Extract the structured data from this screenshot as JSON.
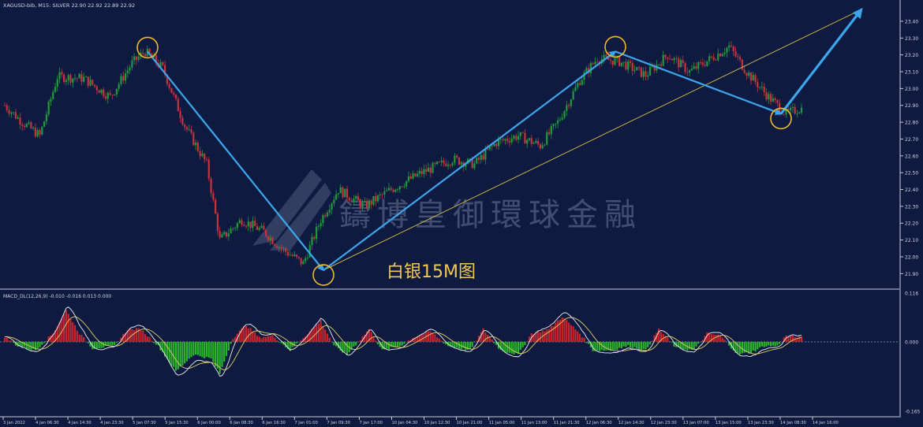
{
  "header": {
    "symbol_info": "XAGUSD-bib, M15:  SILVER  22.90 22.92 22.89 22.92",
    "indicator_info": "MACD_DL(12,26,9) -0.010 -0.016 0.013 0.000"
  },
  "annotation": {
    "caption": "白银15M图"
  },
  "watermark": {
    "text": "鑄博皇御環球金融"
  },
  "colors": {
    "background": "#0f1a40",
    "grid": "#2b3a6e",
    "candle_up": "#1f9a3a",
    "candle_down": "#c8323c",
    "trend_arrow": "#3ba6ec",
    "trendline": "#d8c040",
    "circle": "#f0b82a",
    "macd_pos": "#c8242e",
    "macd_neg": "#2bb52b",
    "macd_line": "#f0f0f0",
    "signal_line": "#e0d060",
    "axis_text": "#d0d4e0"
  },
  "chart_data": [
    {
      "type": "candlestick",
      "ylim": [
        21.85,
        23.47
      ],
      "y_ticks": [
        "23.40",
        "23.30",
        "23.20",
        "23.10",
        "23.00",
        "22.90",
        "22.80",
        "22.70",
        "22.60",
        "22.50",
        "22.40",
        "22.30",
        "22.20",
        "22.10",
        "22.00",
        "21.90"
      ],
      "x_tick_labels": [
        "3 Jan 2022",
        "4 Jan 06:30",
        "4 Jan 14:30",
        "4 Jan 23:30",
        "5 Jan 07:30",
        "5 Jan 15:30",
        "6 Jan 00:00",
        "6 Jan 08:30",
        "6 Jan 16:30",
        "7 Jan 01:00",
        "7 Jan 09:30",
        "7 Jan 17:00",
        "10 Jan 04:30",
        "10 Jan 12:30",
        "10 Jan 21:00",
        "11 Jan 05:00",
        "11 Jan 13:00",
        "11 Jan 21:30",
        "12 Jan 06:30",
        "12 Jan 14:30",
        "12 Jan 23:30",
        "13 Jan 07:00",
        "13 Jan 15:00",
        "13 Jan 23:30",
        "14 Jan 08:30",
        "14 Jan 16:00"
      ],
      "price_path_keypoints": [
        {
          "i": 0,
          "p": 22.9
        },
        {
          "i": 8,
          "p": 22.8
        },
        {
          "i": 16,
          "p": 22.72
        },
        {
          "i": 24,
          "p": 23.07
        },
        {
          "i": 36,
          "p": 23.06
        },
        {
          "i": 48,
          "p": 22.95
        },
        {
          "i": 58,
          "p": 23.15
        },
        {
          "i": 64,
          "p": 23.22
        },
        {
          "i": 72,
          "p": 23.12
        },
        {
          "i": 82,
          "p": 22.78
        },
        {
          "i": 92,
          "p": 22.55
        },
        {
          "i": 98,
          "p": 22.1
        },
        {
          "i": 108,
          "p": 22.22
        },
        {
          "i": 118,
          "p": 22.15
        },
        {
          "i": 126,
          "p": 22.05
        },
        {
          "i": 136,
          "p": 21.96
        },
        {
          "i": 144,
          "p": 22.22
        },
        {
          "i": 152,
          "p": 22.4
        },
        {
          "i": 164,
          "p": 22.3
        },
        {
          "i": 176,
          "p": 22.4
        },
        {
          "i": 190,
          "p": 22.5
        },
        {
          "i": 204,
          "p": 22.58
        },
        {
          "i": 214,
          "p": 22.55
        },
        {
          "i": 224,
          "p": 22.68
        },
        {
          "i": 234,
          "p": 22.72
        },
        {
          "i": 244,
          "p": 22.66
        },
        {
          "i": 252,
          "p": 22.8
        },
        {
          "i": 262,
          "p": 23.05
        },
        {
          "i": 270,
          "p": 23.18
        },
        {
          "i": 280,
          "p": 23.16
        },
        {
          "i": 292,
          "p": 23.08
        },
        {
          "i": 302,
          "p": 23.2
        },
        {
          "i": 312,
          "p": 23.1
        },
        {
          "i": 322,
          "p": 23.18
        },
        {
          "i": 330,
          "p": 23.25
        },
        {
          "i": 338,
          "p": 23.1
        },
        {
          "i": 348,
          "p": 22.95
        },
        {
          "i": 356,
          "p": 22.85
        },
        {
          "i": 362,
          "p": 22.88
        }
      ],
      "pattern_points": [
        {
          "label": "high",
          "p": 23.22
        },
        {
          "label": "low",
          "p": 21.92
        },
        {
          "label": "high",
          "p": 23.22
        },
        {
          "label": "low",
          "p": 22.85
        },
        {
          "label": "target",
          "p": 23.47
        }
      ],
      "trendline": {
        "from_p": 21.92,
        "to_p": 23.47
      }
    },
    {
      "type": "macd",
      "ylim": [
        -0.165,
        0.116
      ],
      "y_ticks": [
        "0.116",
        "0.000",
        "-0.165"
      ],
      "zero": 0.0,
      "histogram_keypoints": [
        {
          "i": 0,
          "v": 0.012
        },
        {
          "i": 6,
          "v": -0.01
        },
        {
          "i": 14,
          "v": -0.02
        },
        {
          "i": 22,
          "v": 0.02
        },
        {
          "i": 28,
          "v": 0.075
        },
        {
          "i": 34,
          "v": 0.02
        },
        {
          "i": 40,
          "v": -0.015
        },
        {
          "i": 50,
          "v": -0.01
        },
        {
          "i": 56,
          "v": 0.03
        },
        {
          "i": 62,
          "v": 0.03
        },
        {
          "i": 70,
          "v": -0.01
        },
        {
          "i": 78,
          "v": -0.07
        },
        {
          "i": 86,
          "v": -0.03
        },
        {
          "i": 94,
          "v": -0.04
        },
        {
          "i": 98,
          "v": -0.075
        },
        {
          "i": 104,
          "v": 0.01
        },
        {
          "i": 110,
          "v": 0.04
        },
        {
          "i": 116,
          "v": 0.01
        },
        {
          "i": 122,
          "v": 0.015
        },
        {
          "i": 130,
          "v": -0.02
        },
        {
          "i": 138,
          "v": 0.02
        },
        {
          "i": 144,
          "v": 0.05
        },
        {
          "i": 150,
          "v": -0.01
        },
        {
          "i": 156,
          "v": -0.03
        },
        {
          "i": 166,
          "v": 0.03
        },
        {
          "i": 172,
          "v": -0.02
        },
        {
          "i": 180,
          "v": -0.01
        },
        {
          "i": 186,
          "v": 0.01
        },
        {
          "i": 194,
          "v": 0.025
        },
        {
          "i": 202,
          "v": -0.01
        },
        {
          "i": 212,
          "v": -0.02
        },
        {
          "i": 218,
          "v": 0.03
        },
        {
          "i": 226,
          "v": -0.02
        },
        {
          "i": 234,
          "v": -0.03
        },
        {
          "i": 240,
          "v": 0.02
        },
        {
          "i": 248,
          "v": 0.03
        },
        {
          "i": 254,
          "v": 0.06
        },
        {
          "i": 262,
          "v": 0.02
        },
        {
          "i": 268,
          "v": -0.02
        },
        {
          "i": 276,
          "v": -0.02
        },
        {
          "i": 284,
          "v": -0.01
        },
        {
          "i": 292,
          "v": -0.02
        },
        {
          "i": 298,
          "v": 0.03
        },
        {
          "i": 306,
          "v": -0.015
        },
        {
          "i": 314,
          "v": -0.02
        },
        {
          "i": 320,
          "v": 0.02
        },
        {
          "i": 326,
          "v": 0.015
        },
        {
          "i": 334,
          "v": -0.03
        },
        {
          "i": 340,
          "v": -0.025
        },
        {
          "i": 346,
          "v": -0.01
        },
        {
          "i": 352,
          "v": -0.01
        },
        {
          "i": 356,
          "v": 0.015
        },
        {
          "i": 362,
          "v": 0.01
        }
      ]
    }
  ]
}
